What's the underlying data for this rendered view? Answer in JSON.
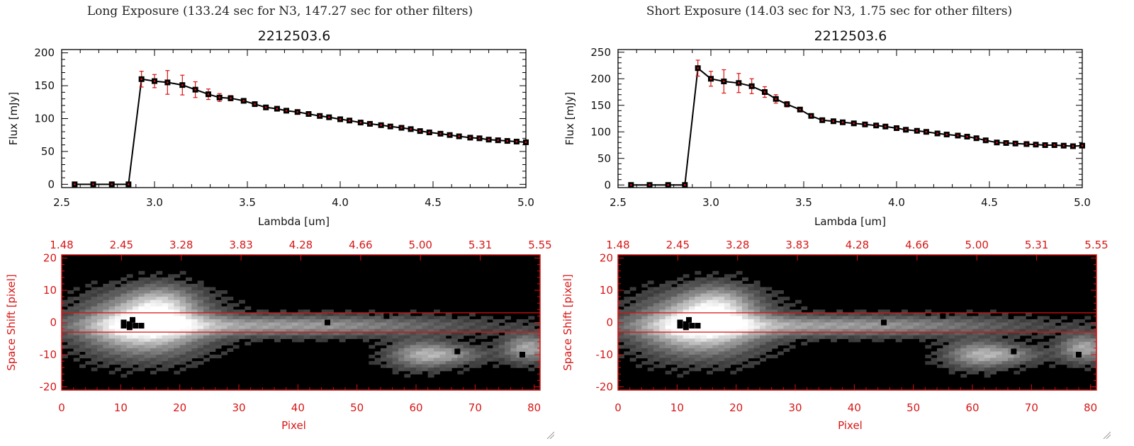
{
  "panels": [
    {
      "exposure_title": "Long Exposure (133.24 sec for N3, 147.27 sec for other filters)",
      "object_title": "2212503.6"
    },
    {
      "exposure_title": "Short Exposure (14.03 sec for N3, 1.75 sec for other filters)",
      "object_title": "2212503.6"
    }
  ],
  "colors": {
    "axis": "#000000",
    "errorbar": "#dd1111",
    "accent_red": "#dd1111",
    "marker": "#000000"
  },
  "chart_data": [
    {
      "type": "line",
      "title": "2212503.6",
      "xlabel": "Lambda [um]",
      "ylabel": "Flux [mJy]",
      "xlim": [
        2.5,
        5.0
      ],
      "ylim": [
        -5,
        205
      ],
      "xticks": [
        "2.5",
        "3.0",
        "3.5",
        "4.0",
        "4.5",
        "5.0"
      ],
      "yticks": [
        "0",
        "50",
        "100",
        "150",
        "200"
      ],
      "x": [
        2.57,
        2.67,
        2.77,
        2.86,
        2.93,
        3.0,
        3.07,
        3.15,
        3.22,
        3.29,
        3.35,
        3.41,
        3.48,
        3.54,
        3.6,
        3.66,
        3.71,
        3.77,
        3.83,
        3.89,
        3.94,
        4.0,
        4.05,
        4.11,
        4.16,
        4.22,
        4.27,
        4.33,
        4.38,
        4.43,
        4.48,
        4.54,
        4.59,
        4.64,
        4.7,
        4.75,
        4.8,
        4.85,
        4.9,
        4.95,
        5.0
      ],
      "y": [
        0,
        0,
        0,
        0,
        160,
        157,
        155,
        151,
        144,
        137,
        132,
        131,
        127,
        122,
        117,
        115,
        112,
        110,
        107,
        104,
        102,
        99,
        97,
        94,
        92,
        90,
        88,
        86,
        84,
        81,
        79,
        77,
        75,
        73,
        71,
        70,
        68,
        67,
        66,
        65,
        64
      ],
      "yerr": [
        0,
        0,
        0,
        0,
        12,
        10,
        18,
        15,
        12,
        8,
        6,
        4,
        3,
        2,
        2,
        2,
        2,
        2,
        2,
        2,
        2,
        2,
        2,
        2,
        2,
        2,
        2,
        2,
        2,
        2,
        2,
        2,
        2,
        2,
        2,
        2,
        2,
        2,
        2,
        2,
        2
      ]
    },
    {
      "type": "heatmap",
      "xlabel": "Pixel",
      "ylabel": "Space Shift [pixel]",
      "xlim": [
        0,
        81
      ],
      "ylim": [
        -21,
        21
      ],
      "xticks": [
        "0",
        "10",
        "20",
        "30",
        "40",
        "50",
        "60",
        "70",
        "80"
      ],
      "yticks": [
        "-20",
        "-10",
        "0",
        "10",
        "20"
      ],
      "top_ticks": [
        "1.48",
        "2.45",
        "3.28",
        "3.83",
        "4.28",
        "4.66",
        "5.00",
        "5.31",
        "5.55"
      ],
      "aperture_lines": [
        3,
        -3
      ],
      "sources": [
        {
          "x": 14,
          "y": -1,
          "peak": 1.0,
          "sx": 7,
          "sy": 6
        },
        {
          "x": 17,
          "y": 6,
          "peak": 0.45,
          "sx": 4,
          "sy": 4
        },
        {
          "x": 36,
          "y": -1,
          "peak": 0.55,
          "sx": 22,
          "sy": 2.2
        },
        {
          "x": 61,
          "y": -10,
          "peak": 0.55,
          "sx": 4,
          "sy": 3
        },
        {
          "x": 67,
          "y": -10,
          "peak": 0.3,
          "sx": 4,
          "sy": 2
        },
        {
          "x": 79,
          "y": -8,
          "peak": 0.6,
          "sx": 3,
          "sy": 3
        }
      ],
      "bad_pixels": [
        [
          45,
          0
        ],
        [
          55,
          2
        ],
        [
          67,
          -9
        ],
        [
          78,
          -10
        ]
      ]
    },
    {
      "type": "line",
      "title": "2212503.6",
      "xlabel": "Lambda [um]",
      "ylabel": "Flux [mJy]",
      "xlim": [
        2.5,
        5.0
      ],
      "ylim": [
        -5,
        255
      ],
      "xticks": [
        "2.5",
        "3.0",
        "3.5",
        "4.0",
        "4.5",
        "5.0"
      ],
      "yticks": [
        "0",
        "50",
        "100",
        "150",
        "200",
        "250"
      ],
      "x": [
        2.57,
        2.67,
        2.77,
        2.86,
        2.93,
        3.0,
        3.07,
        3.15,
        3.22,
        3.29,
        3.35,
        3.41,
        3.48,
        3.54,
        3.6,
        3.66,
        3.71,
        3.77,
        3.83,
        3.89,
        3.94,
        4.0,
        4.05,
        4.11,
        4.16,
        4.22,
        4.27,
        4.33,
        4.38,
        4.43,
        4.48,
        4.54,
        4.59,
        4.64,
        4.7,
        4.75,
        4.8,
        4.85,
        4.9,
        4.95,
        5.0
      ],
      "y": [
        0,
        0,
        0,
        0,
        220,
        200,
        195,
        192,
        186,
        175,
        162,
        152,
        142,
        130,
        122,
        120,
        118,
        116,
        114,
        112,
        110,
        107,
        104,
        102,
        100,
        97,
        95,
        93,
        91,
        88,
        84,
        80,
        79,
        78,
        77,
        76,
        75,
        75,
        74,
        73,
        74
      ],
      "yerr": [
        0,
        0,
        0,
        0,
        15,
        14,
        22,
        18,
        14,
        10,
        8,
        5,
        3,
        3,
        2,
        2,
        2,
        2,
        2,
        2,
        2,
        2,
        2,
        2,
        2,
        2,
        2,
        2,
        2,
        2,
        2,
        2,
        2,
        2,
        2,
        2,
        2,
        2,
        2,
        2,
        2
      ]
    },
    {
      "type": "heatmap",
      "xlabel": "Pixel",
      "ylabel": "Space Shift [pixel]",
      "xlim": [
        0,
        81
      ],
      "ylim": [
        -21,
        21
      ],
      "xticks": [
        "0",
        "10",
        "20",
        "30",
        "40",
        "50",
        "60",
        "70",
        "80"
      ],
      "yticks": [
        "-20",
        "-10",
        "0",
        "10",
        "20"
      ],
      "top_ticks": [
        "1.48",
        "2.45",
        "3.28",
        "3.83",
        "4.28",
        "4.66",
        "5.00",
        "5.31",
        "5.55"
      ],
      "aperture_lines": [
        3,
        -3
      ],
      "sources": [
        {
          "x": 14,
          "y": -1,
          "peak": 1.0,
          "sx": 7,
          "sy": 6
        },
        {
          "x": 17,
          "y": 6,
          "peak": 0.45,
          "sx": 4,
          "sy": 4
        },
        {
          "x": 36,
          "y": -1,
          "peak": 0.55,
          "sx": 22,
          "sy": 2.2
        },
        {
          "x": 61,
          "y": -10,
          "peak": 0.55,
          "sx": 4,
          "sy": 3
        },
        {
          "x": 67,
          "y": -10,
          "peak": 0.3,
          "sx": 4,
          "sy": 2
        },
        {
          "x": 79,
          "y": -8,
          "peak": 0.6,
          "sx": 3,
          "sy": 3
        }
      ],
      "bad_pixels": [
        [
          45,
          0
        ],
        [
          55,
          2
        ],
        [
          67,
          -9
        ],
        [
          78,
          -10
        ]
      ]
    }
  ]
}
